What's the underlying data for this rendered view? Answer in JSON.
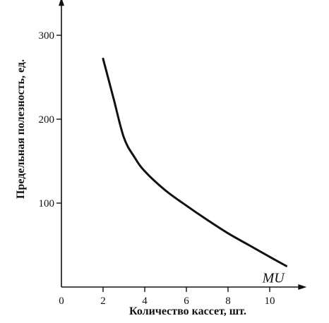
{
  "chart_data": {
    "type": "line",
    "title": "",
    "xlabel": "Количество кассет, шт.",
    "ylabel": "Предельная полезность, ед.",
    "xlim": [
      0,
      11.3
    ],
    "ylim": [
      0,
      330
    ],
    "x_ticks": [
      0,
      2,
      4,
      6,
      8,
      10
    ],
    "x_tick_labels": [
      "0",
      "2",
      "4",
      "6",
      "8",
      "10"
    ],
    "y_ticks": [
      100,
      200,
      300
    ],
    "y_tick_labels": [
      "100",
      "200",
      "300"
    ],
    "grid": false,
    "series": [
      {
        "name": "MU",
        "x": [
          2,
          2.5,
          3,
          3.5,
          4,
          5,
          6,
          7,
          8,
          9,
          10,
          10.8
        ],
        "y": [
          272,
          225,
          178,
          155,
          138,
          115,
          97,
          80,
          64,
          50,
          36,
          25
        ]
      }
    ]
  }
}
